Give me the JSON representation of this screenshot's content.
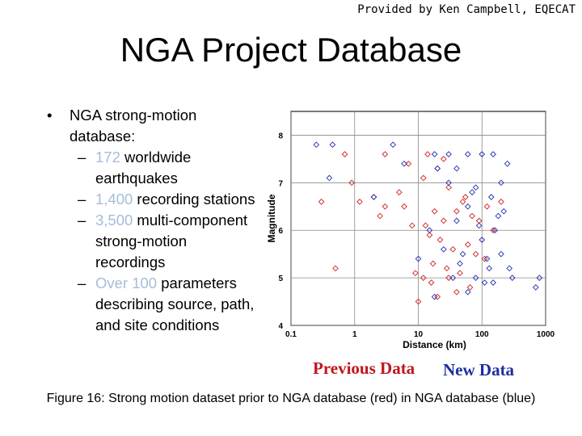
{
  "header": {
    "credit": "Provided by Ken Campbell, EQECAT",
    "title": "NGA Project Database"
  },
  "bullets": {
    "main": "NGA strong-motion database:",
    "items": [
      {
        "highlight": "172",
        "text": " worldwide earthquakes"
      },
      {
        "highlight": "1,400",
        "text": " recording stations"
      },
      {
        "highlight": "3,500",
        "text": " multi-component strong-motion recordings"
      },
      {
        "highlight": "Over 100",
        "text": " parameters describing source, path, and site conditions"
      }
    ]
  },
  "legend": {
    "previous": "Previous Data",
    "new": "New Data"
  },
  "caption": "Figure 16: Strong motion dataset prior to NGA database (red) in NGA database (blue)",
  "chart_data": {
    "type": "scatter",
    "xlabel": "Distance (km)",
    "ylabel": "Magnitude",
    "xscale": "log",
    "xlim": [
      0.1,
      1000
    ],
    "ylim": [
      4,
      8.5
    ],
    "xticks": [
      "0.1",
      "1",
      "10",
      "100",
      "1000"
    ],
    "yticks": [
      "4",
      "5",
      "6",
      "7",
      "8"
    ],
    "grid": true,
    "series": [
      {
        "color": "#d32020",
        "marker": "diamond-open",
        "points": [
          [
            0.7,
            7.6
          ],
          [
            3,
            7.6
          ],
          [
            1.2,
            6.6
          ],
          [
            2,
            6.7
          ],
          [
            0.3,
            6.6
          ],
          [
            6,
            6.5
          ],
          [
            8,
            6.1
          ],
          [
            0.5,
            5.2
          ],
          [
            9,
            5.1
          ],
          [
            2.5,
            6.3
          ],
          [
            12,
            7.1
          ],
          [
            20,
            7.3
          ],
          [
            30,
            6.9
          ],
          [
            50,
            6.6
          ],
          [
            90,
            6.2
          ],
          [
            18,
            6.4
          ],
          [
            25,
            6.2
          ],
          [
            40,
            6.4
          ],
          [
            70,
            6.3
          ],
          [
            15,
            5.9
          ],
          [
            22,
            5.8
          ],
          [
            35,
            5.6
          ],
          [
            60,
            5.7
          ],
          [
            110,
            5.4
          ],
          [
            12,
            5.0
          ],
          [
            16,
            4.9
          ],
          [
            28,
            5.2
          ],
          [
            45,
            5.1
          ],
          [
            10,
            4.5
          ],
          [
            20,
            4.6
          ],
          [
            65,
            4.8
          ],
          [
            150,
            6.0
          ],
          [
            200,
            6.6
          ],
          [
            3,
            6.5
          ],
          [
            5,
            6.8
          ],
          [
            0.9,
            7.0
          ],
          [
            7,
            7.4
          ],
          [
            14,
            7.6
          ],
          [
            25,
            7.5
          ],
          [
            30,
            5.0
          ],
          [
            40,
            4.7
          ],
          [
            80,
            5.5
          ],
          [
            120,
            6.5
          ],
          [
            13,
            6.1
          ],
          [
            17,
            5.3
          ],
          [
            55,
            6.7
          ]
        ]
      },
      {
        "color": "#2030b0",
        "marker": "diamond-open",
        "points": [
          [
            0.25,
            7.8
          ],
          [
            0.45,
            7.8
          ],
          [
            4,
            7.8
          ],
          [
            6,
            7.4
          ],
          [
            2,
            6.7
          ],
          [
            0.4,
            7.1
          ],
          [
            18,
            7.6
          ],
          [
            30,
            7.6
          ],
          [
            60,
            7.6
          ],
          [
            100,
            7.6
          ],
          [
            150,
            7.6
          ],
          [
            30,
            7.0
          ],
          [
            80,
            6.9
          ],
          [
            140,
            6.7
          ],
          [
            220,
            6.4
          ],
          [
            40,
            6.2
          ],
          [
            90,
            6.1
          ],
          [
            160,
            6.0
          ],
          [
            25,
            5.6
          ],
          [
            50,
            5.5
          ],
          [
            120,
            5.4
          ],
          [
            200,
            5.5
          ],
          [
            35,
            5.0
          ],
          [
            80,
            5.0
          ],
          [
            150,
            4.9
          ],
          [
            300,
            5.0
          ],
          [
            18,
            4.6
          ],
          [
            60,
            4.7
          ],
          [
            110,
            4.9
          ],
          [
            800,
            5.0
          ],
          [
            700,
            4.8
          ],
          [
            20,
            7.3
          ],
          [
            40,
            7.3
          ],
          [
            250,
            7.4
          ],
          [
            60,
            6.5
          ],
          [
            180,
            6.3
          ],
          [
            15,
            6.0
          ],
          [
            100,
            5.8
          ],
          [
            45,
            5.3
          ],
          [
            130,
            5.2
          ],
          [
            270,
            5.2
          ],
          [
            10,
            5.4
          ],
          [
            70,
            6.8
          ],
          [
            200,
            7.0
          ]
        ]
      }
    ]
  }
}
